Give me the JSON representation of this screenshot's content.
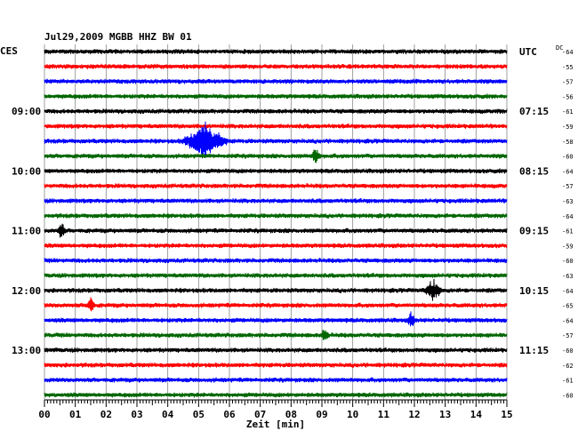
{
  "chart_data": {
    "type": "line",
    "title": "Jul29,2009   MGBB HHZ BW 01",
    "left_timezone": "CES",
    "right_timezone": "UTC",
    "dc_label": "DC",
    "xlabel": "Zeit [min]",
    "xlim": [
      0,
      15
    ],
    "x_ticks": [
      "00",
      "01",
      "02",
      "03",
      "04",
      "05",
      "06",
      "07",
      "08",
      "09",
      "10",
      "11",
      "12",
      "13",
      "14",
      "15"
    ],
    "grid": true,
    "trace_colors": [
      "#000000",
      "#ff0000",
      "#0000ff",
      "#006600"
    ],
    "left_hour_labels": [
      {
        "row": 4,
        "label": "09:00"
      },
      {
        "row": 8,
        "label": "10:00"
      },
      {
        "row": 12,
        "label": "11:00"
      },
      {
        "row": 16,
        "label": "12:00"
      },
      {
        "row": 20,
        "label": "13:00"
      }
    ],
    "right_hour_labels": [
      {
        "row": 0,
        "label": "UTC"
      },
      {
        "row": 4,
        "label": "07:15"
      },
      {
        "row": 8,
        "label": "08:15"
      },
      {
        "row": 12,
        "label": "09:15"
      },
      {
        "row": 16,
        "label": "10:15"
      },
      {
        "row": 20,
        "label": "11:15"
      }
    ],
    "dc_offsets": [
      "-64",
      "-55",
      "-57",
      "-56",
      "-61",
      "-59",
      "-58",
      "-60",
      "-64",
      "-57",
      "-63",
      "-64",
      "-61",
      "-59",
      "-60",
      "-63",
      "-64",
      "-65",
      "-64",
      "-57",
      "-60",
      "-62",
      "-61",
      "-60"
    ],
    "events": [
      {
        "row": 6,
        "minute": 5.2,
        "width": 1.7,
        "amplitude": 3.2,
        "label": ""
      },
      {
        "row": 7,
        "minute": 8.8,
        "width": 0.35,
        "amplitude": 1.4,
        "label": ""
      },
      {
        "row": 12,
        "minute": 0.55,
        "width": 0.3,
        "amplitude": 1.5,
        "label": ""
      },
      {
        "row": 16,
        "minute": 12.6,
        "width": 0.7,
        "amplitude": 1.8,
        "label": ""
      },
      {
        "row": 17,
        "minute": 1.5,
        "width": 0.3,
        "amplitude": 1.6,
        "label": ""
      },
      {
        "row": 18,
        "minute": 11.9,
        "width": 0.3,
        "amplitude": 1.3,
        "label": ""
      },
      {
        "row": 19,
        "minute": 9.1,
        "width": 0.3,
        "amplitude": 1.2,
        "label": ""
      }
    ]
  }
}
